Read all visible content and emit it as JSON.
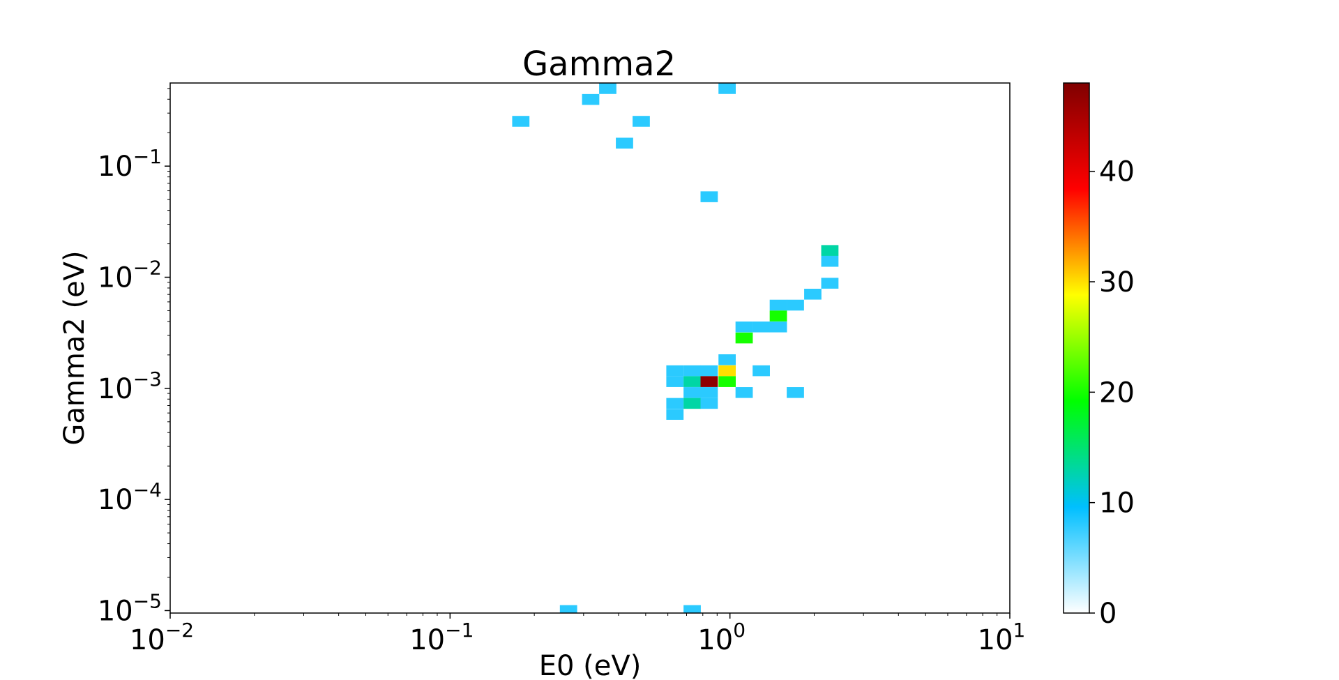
{
  "chart_data": {
    "type": "heatmap",
    "title": "Gamma2",
    "xlabel": "E0 (eV)",
    "ylabel": "Gamma2 (eV)",
    "x_scale": "log",
    "y_scale": "log",
    "xlim": [
      0.01,
      10
    ],
    "ylim": [
      9.5e-06,
      0.56
    ],
    "grid": false,
    "x_ticks": [
      {
        "value": 0.01,
        "base": "10",
        "exp": "−2"
      },
      {
        "value": 0.1,
        "base": "10",
        "exp": "−1"
      },
      {
        "value": 1,
        "base": "10",
        "exp": "0"
      },
      {
        "value": 10,
        "base": "10",
        "exp": "1"
      }
    ],
    "y_ticks": [
      {
        "value": 1e-05,
        "base": "10",
        "exp": "−5"
      },
      {
        "value": 0.0001,
        "base": "10",
        "exp": "−4"
      },
      {
        "value": 0.001,
        "base": "10",
        "exp": "−3"
      },
      {
        "value": 0.01,
        "base": "10",
        "exp": "−2"
      },
      {
        "value": 0.1,
        "base": "10",
        "exp": "−1"
      }
    ],
    "bin": {
      "dlog_x": 0.0617,
      "dlog_y": 0.0976
    },
    "cells": [
      {
        "x": 0.366,
        "y": 0.499,
        "count": 8
      },
      {
        "x": 0.977,
        "y": 0.499,
        "count": 8
      },
      {
        "x": 0.318,
        "y": 0.398,
        "count": 8
      },
      {
        "x": 0.179,
        "y": 0.253,
        "count": 8
      },
      {
        "x": 0.482,
        "y": 0.253,
        "count": 8
      },
      {
        "x": 0.42,
        "y": 0.161,
        "count": 8
      },
      {
        "x": 0.843,
        "y": 0.053,
        "count": 8
      },
      {
        "x": 2.275,
        "y": 0.0174,
        "count": 13
      },
      {
        "x": 2.275,
        "y": 0.0139,
        "count": 8
      },
      {
        "x": 2.275,
        "y": 0.00883,
        "count": 8
      },
      {
        "x": 1.977,
        "y": 0.00704,
        "count": 8
      },
      {
        "x": 1.489,
        "y": 0.00561,
        "count": 8
      },
      {
        "x": 1.713,
        "y": 0.00561,
        "count": 8
      },
      {
        "x": 1.489,
        "y": 0.00448,
        "count": 20
      },
      {
        "x": 1.124,
        "y": 0.00357,
        "count": 8
      },
      {
        "x": 1.294,
        "y": 0.00357,
        "count": 8
      },
      {
        "x": 1.489,
        "y": 0.00357,
        "count": 8
      },
      {
        "x": 1.124,
        "y": 0.00284,
        "count": 20
      },
      {
        "x": 0.977,
        "y": 0.00181,
        "count": 8
      },
      {
        "x": 0.636,
        "y": 0.00144,
        "count": 8
      },
      {
        "x": 0.733,
        "y": 0.00144,
        "count": 8
      },
      {
        "x": 0.843,
        "y": 0.00144,
        "count": 8
      },
      {
        "x": 0.977,
        "y": 0.00144,
        "count": 30
      },
      {
        "x": 1.294,
        "y": 0.00144,
        "count": 8
      },
      {
        "x": 0.636,
        "y": 0.00115,
        "count": 8
      },
      {
        "x": 0.733,
        "y": 0.00115,
        "count": 13
      },
      {
        "x": 0.843,
        "y": 0.00115,
        "count": 47
      },
      {
        "x": 0.977,
        "y": 0.00115,
        "count": 20
      },
      {
        "x": 0.733,
        "y": 0.000917,
        "count": 8
      },
      {
        "x": 0.843,
        "y": 0.000917,
        "count": 8
      },
      {
        "x": 1.124,
        "y": 0.000917,
        "count": 8
      },
      {
        "x": 1.713,
        "y": 0.000917,
        "count": 8
      },
      {
        "x": 0.636,
        "y": 0.000732,
        "count": 8
      },
      {
        "x": 0.733,
        "y": 0.000732,
        "count": 13
      },
      {
        "x": 0.843,
        "y": 0.000732,
        "count": 8
      },
      {
        "x": 0.636,
        "y": 0.000583,
        "count": 8
      },
      {
        "x": 0.265,
        "y": 1e-05,
        "count": 8
      },
      {
        "x": 0.733,
        "y": 1e-05,
        "count": 8
      }
    ],
    "colorbar": {
      "min": 0,
      "max": 48,
      "ticks": [
        0,
        10,
        20,
        30,
        40
      ],
      "stops": [
        "#ffffff",
        "#00bfff",
        "#00ff00",
        "#ffff00",
        "#ff0000",
        "#800000"
      ]
    }
  }
}
